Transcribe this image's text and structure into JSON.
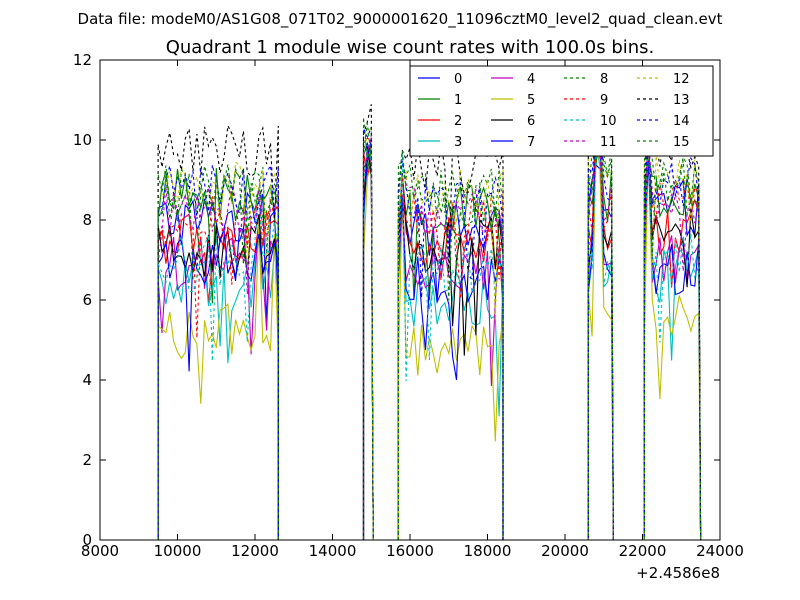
{
  "suptitle": "Data file: modeM0/AS1G08_071T02_9000001620_11096cztM0_level2_quad_clean.evt",
  "chart_data": {
    "type": "line",
    "title": "Quadrant 1 module wise count rates with 100.0s bins.",
    "xlabel": "",
    "ylabel": "",
    "xlim": [
      8000,
      24000
    ],
    "ylim": [
      0,
      12
    ],
    "x_offset_label": "+2.4586e8",
    "xticks": [
      8000,
      10000,
      12000,
      14000,
      16000,
      18000,
      20000,
      22000,
      24000
    ],
    "xtick_labels": [
      "8000",
      "10000",
      "12000",
      "14000",
      "16000",
      "18000",
      "20000",
      "22000",
      "24000"
    ],
    "yticks": [
      0,
      2,
      4,
      6,
      8,
      10,
      12
    ],
    "ytick_labels": [
      "0",
      "2",
      "4",
      "6",
      "8",
      "10",
      "12"
    ],
    "legend_position": "top-right",
    "legend_columns": 4,
    "active_segments": [
      [
        9500,
        12600
      ],
      [
        14800,
        15050
      ],
      [
        15700,
        18400
      ],
      [
        20600,
        21250
      ],
      [
        22050,
        23500
      ]
    ],
    "spikes": [
      [
        12100,
        9.0
      ],
      [
        12500,
        9.0
      ],
      [
        14950,
        10.5
      ],
      [
        15800,
        10.0
      ],
      [
        20850,
        11.0
      ],
      [
        22150,
        11.0
      ]
    ],
    "series": [
      {
        "name": "0",
        "base": 7.6,
        "seg_offsets": [
          0.4,
          0,
          0.1,
          0.8,
          0.7
        ],
        "color": "#0000ff",
        "dash": ""
      },
      {
        "name": "1",
        "base": 8.0,
        "seg_offsets": [
          0.6,
          0,
          0.2,
          0.6,
          0.4
        ],
        "color": "#008000",
        "dash": ""
      },
      {
        "name": "2",
        "base": 7.3,
        "seg_offsets": [
          0.2,
          0,
          0.1,
          0.5,
          0.5
        ],
        "color": "#ff0000",
        "dash": ""
      },
      {
        "name": "3",
        "base": 6.3,
        "seg_offsets": [
          0.0,
          0,
          -0.3,
          0.4,
          0.3
        ],
        "color": "#00bfbf",
        "dash": ""
      },
      {
        "name": "4",
        "base": 6.6,
        "seg_offsets": [
          0.3,
          0,
          0.0,
          0.5,
          0.4
        ],
        "color": "#bf00bf",
        "dash": ""
      },
      {
        "name": "5",
        "base": 5.0,
        "seg_offsets": [
          0.2,
          0,
          -0.2,
          0.7,
          0.6
        ],
        "color": "#bfbf00",
        "dash": ""
      },
      {
        "name": "6",
        "base": 7.0,
        "seg_offsets": [
          0.2,
          0,
          0.4,
          0.5,
          0.6
        ],
        "color": "#000000",
        "dash": ""
      },
      {
        "name": "7",
        "base": 6.6,
        "seg_offsets": [
          0.5,
          0,
          -0.2,
          0.3,
          0.2
        ],
        "color": "#0000ff",
        "dash": ""
      },
      {
        "name": "8",
        "base": 8.6,
        "seg_offsets": [
          0.2,
          0,
          0.1,
          0.6,
          0.5
        ],
        "color": "#008000",
        "dash": "3,3"
      },
      {
        "name": "9",
        "base": 7.8,
        "seg_offsets": [
          0.2,
          0,
          0.3,
          0.5,
          0.6
        ],
        "color": "#ff0000",
        "dash": "3,3"
      },
      {
        "name": "10",
        "base": 6.6,
        "seg_offsets": [
          0.3,
          0,
          0.2,
          0.4,
          0.4
        ],
        "color": "#00bfbf",
        "dash": "3,3"
      },
      {
        "name": "11",
        "base": 7.9,
        "seg_offsets": [
          0.3,
          0,
          0.3,
          0.5,
          0.4
        ],
        "color": "#bf00bf",
        "dash": "3,3"
      },
      {
        "name": "12",
        "base": 8.4,
        "seg_offsets": [
          0.5,
          0,
          0.2,
          0.8,
          0.7
        ],
        "color": "#bfbf00",
        "dash": "3,3"
      },
      {
        "name": "13",
        "base": 9.2,
        "seg_offsets": [
          0.5,
          0,
          0.1,
          0.6,
          0.5
        ],
        "color": "#000000",
        "dash": "3,3"
      },
      {
        "name": "14",
        "base": 8.5,
        "seg_offsets": [
          0.2,
          0,
          0.1,
          0.5,
          0.4
        ],
        "color": "#0000ff",
        "dash": "3,3"
      },
      {
        "name": "15",
        "base": 8.2,
        "seg_offsets": [
          0.4,
          0,
          0.2,
          0.7,
          0.6
        ],
        "color": "#008000",
        "dash": "3,3"
      }
    ]
  }
}
